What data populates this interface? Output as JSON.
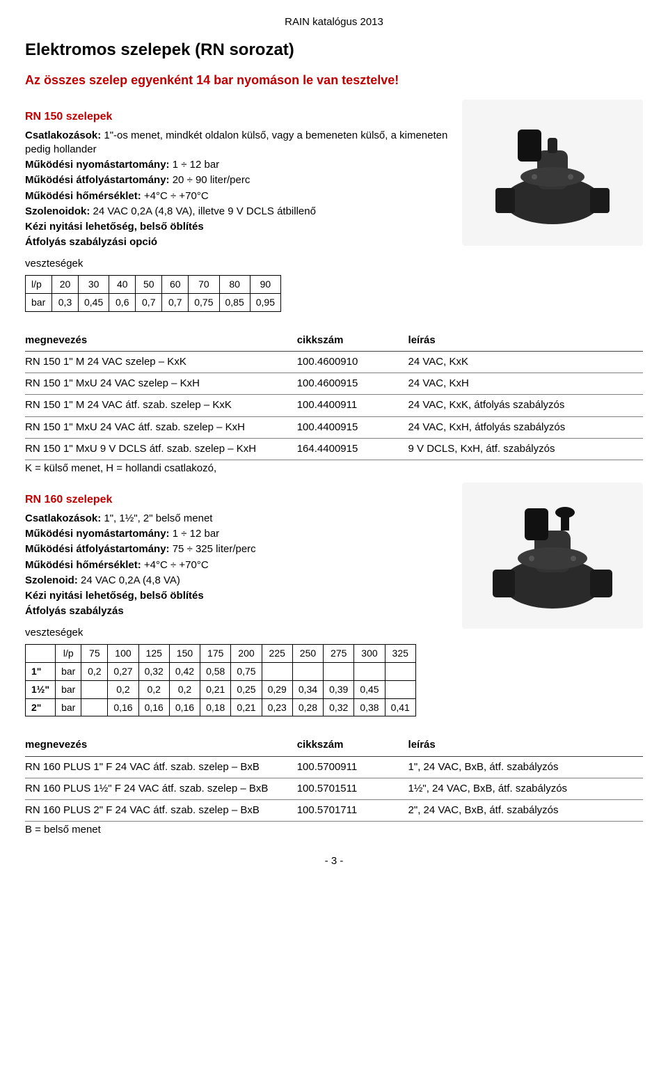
{
  "header_center": "RAIN katalógus 2013",
  "page_title": "Elektromos szelepek (RN sorozat)",
  "subtitle": "Az összes szelep egyenként 14 bar nyomáson le van tesztelve!",
  "rn150": {
    "heading": "RN 150 szelepek",
    "specs": [
      {
        "label": "Csatlakozások:",
        "value": " 1\"-os menet, mindkét oldalon külső, vagy a bemeneten külső, a kimeneten pedig hollander"
      },
      {
        "label": "Működési nyomástartomány:",
        "value": " 1 ÷ 12 bar"
      },
      {
        "label": "Működési átfolyástartomány:",
        "value": " 20 ÷ 90 liter/perc"
      },
      {
        "label": "Működési hőmérséklet:",
        "value": " +4°C ÷ +70°C"
      },
      {
        "label": "Szolenoidok:",
        "value": " 24 VAC 0,2A (4,8 VA), illetve 9 V DCLS átbillenő"
      },
      {
        "label": "Kézi nyitási lehetőség, belső öblítés",
        "value": ""
      },
      {
        "label": "Átfolyás szabályzási opció",
        "value": ""
      }
    ],
    "loss_label": "veszteségek",
    "loss_table": {
      "row_labels": [
        "l/p",
        "bar"
      ],
      "cols": [
        "20",
        "30",
        "40",
        "50",
        "60",
        "70",
        "80",
        "90"
      ],
      "rows": [
        [
          "0,3",
          "0,45",
          "0,6",
          "0,7",
          "0,7",
          "0,75",
          "0,85",
          "0,95"
        ]
      ]
    },
    "products_headers": [
      "megnevezés",
      "cikkszám",
      "leírás"
    ],
    "products": [
      {
        "name": "RN 150 1\" M 24 VAC szelep – KxK",
        "code": "100.4600910",
        "desc": "24 VAC, KxK"
      },
      {
        "name": "RN 150 1\" MxU 24 VAC szelep – KxH",
        "code": "100.4600915",
        "desc": "24 VAC, KxH"
      },
      {
        "name": "RN 150 1\" M 24 VAC átf. szab. szelep – KxK",
        "code": "100.4400911",
        "desc": "24 VAC, KxK, átfolyás szabályzós"
      },
      {
        "name": "RN 150 1\" MxU 24 VAC átf. szab. szelep – KxH",
        "code": "100.4400915",
        "desc": "24 VAC, KxH, átfolyás szabályzós"
      },
      {
        "name": "RN 150 1\" MxU 9 V DCLS átf. szab. szelep – KxH",
        "code": "164.4400915",
        "desc": "9 V DCLS, KxH, átf. szabályzós"
      }
    ],
    "note": "K = külső menet, H = hollandi csatlakozó,"
  },
  "rn160": {
    "heading": "RN 160 szelepek",
    "specs": [
      {
        "label": "Csatlakozások:",
        "value": " 1\", 1½\", 2\" belső menet"
      },
      {
        "label": "Működési nyomástartomány:",
        "value": " 1 ÷ 12 bar"
      },
      {
        "label": "Működési átfolyástartomány:",
        "value": " 75 ÷ 325 liter/perc"
      },
      {
        "label": "Működési hőmérséklet:",
        "value": " +4°C ÷ +70°C"
      },
      {
        "label": "Szolenoid:",
        "value": " 24 VAC 0,2A (4,8 VA)"
      },
      {
        "label": "Kézi nyitási lehetőség, belső öblítés",
        "value": ""
      },
      {
        "label": "Átfolyás szabályzás",
        "value": ""
      }
    ],
    "loss_label": "veszteségek",
    "loss_table2": {
      "top": [
        "l/p",
        "75",
        "100",
        "125",
        "150",
        "175",
        "200",
        "225",
        "250",
        "275",
        "300",
        "325"
      ],
      "rows": [
        {
          "left": "1\"",
          "unit": "bar",
          "vals": [
            "0,2",
            "0,27",
            "0,32",
            "0,42",
            "0,58",
            "0,75",
            "",
            "",
            "",
            "",
            ""
          ]
        },
        {
          "left": "1½\"",
          "unit": "bar",
          "vals": [
            "",
            "0,2",
            "0,2",
            "0,2",
            "0,21",
            "0,25",
            "0,29",
            "0,34",
            "0,39",
            "0,45",
            ""
          ]
        },
        {
          "left": "2\"",
          "unit": "bar",
          "vals": [
            "",
            "0,16",
            "0,16",
            "0,16",
            "0,18",
            "0,21",
            "0,23",
            "0,28",
            "0,32",
            "0,38",
            "0,41"
          ]
        }
      ]
    },
    "products_headers": [
      "megnevezés",
      "cikkszám",
      "leírás"
    ],
    "products": [
      {
        "name": "RN 160 PLUS 1\" F 24 VAC átf. szab. szelep – BxB",
        "code": "100.5700911",
        "desc": "1\", 24 VAC, BxB, átf. szabályzós"
      },
      {
        "name": "RN 160 PLUS 1½\" F 24 VAC átf. szab. szelep – BxB",
        "code": "100.5701511",
        "desc": "1½\", 24 VAC, BxB, átf. szabályzós"
      },
      {
        "name": "RN 160 PLUS 2\" F 24 VAC átf. szab. szelep – BxB",
        "code": "100.5701711",
        "desc": "2\", 24 VAC, BxB, átf. szabályzós"
      }
    ],
    "note": "B = belső menet"
  },
  "page_number": "- 3 -",
  "colors": {
    "accent": "#c00000",
    "text": "#000000",
    "border": "#000000",
    "rule": "#808080"
  }
}
